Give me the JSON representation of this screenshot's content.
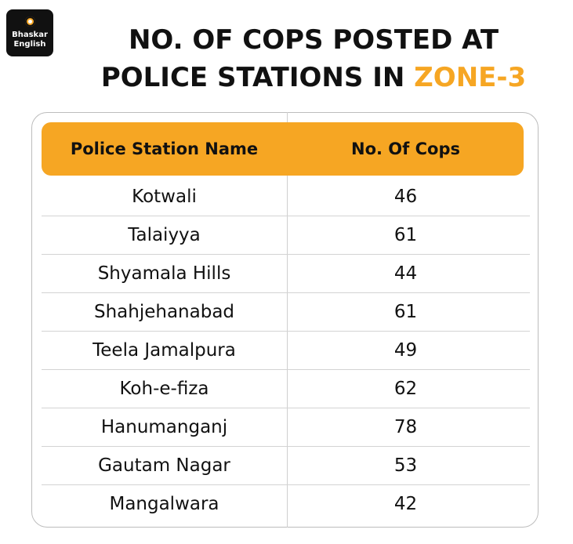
{
  "logo": {
    "line1": "Bhaskar",
    "line2": "English"
  },
  "title": {
    "line1": "NO. OF COPS POSTED AT",
    "line2_prefix": "POLICE STATIONS IN ",
    "line2_accent": "ZONE-3"
  },
  "colors": {
    "accent": "#f6a623",
    "text": "#111111",
    "border": "#bdbdbd"
  },
  "chart_data": {
    "type": "table",
    "columns": [
      "Police Station Name",
      "No. Of Cops"
    ],
    "rows": [
      {
        "name": "Kotwali",
        "value": "46"
      },
      {
        "name": "Talaiyya",
        "value": "61"
      },
      {
        "name": "Shyamala Hills",
        "value": "44"
      },
      {
        "name": "Shahjehanabad",
        "value": "61"
      },
      {
        "name": "Teela Jamalpura",
        "value": "49"
      },
      {
        "name": "Koh-e-fiza",
        "value": "62"
      },
      {
        "name": "Hanumanganj",
        "value": "78"
      },
      {
        "name": "Gautam Nagar",
        "value": "53"
      },
      {
        "name": "Mangalwara",
        "value": "42"
      }
    ]
  }
}
